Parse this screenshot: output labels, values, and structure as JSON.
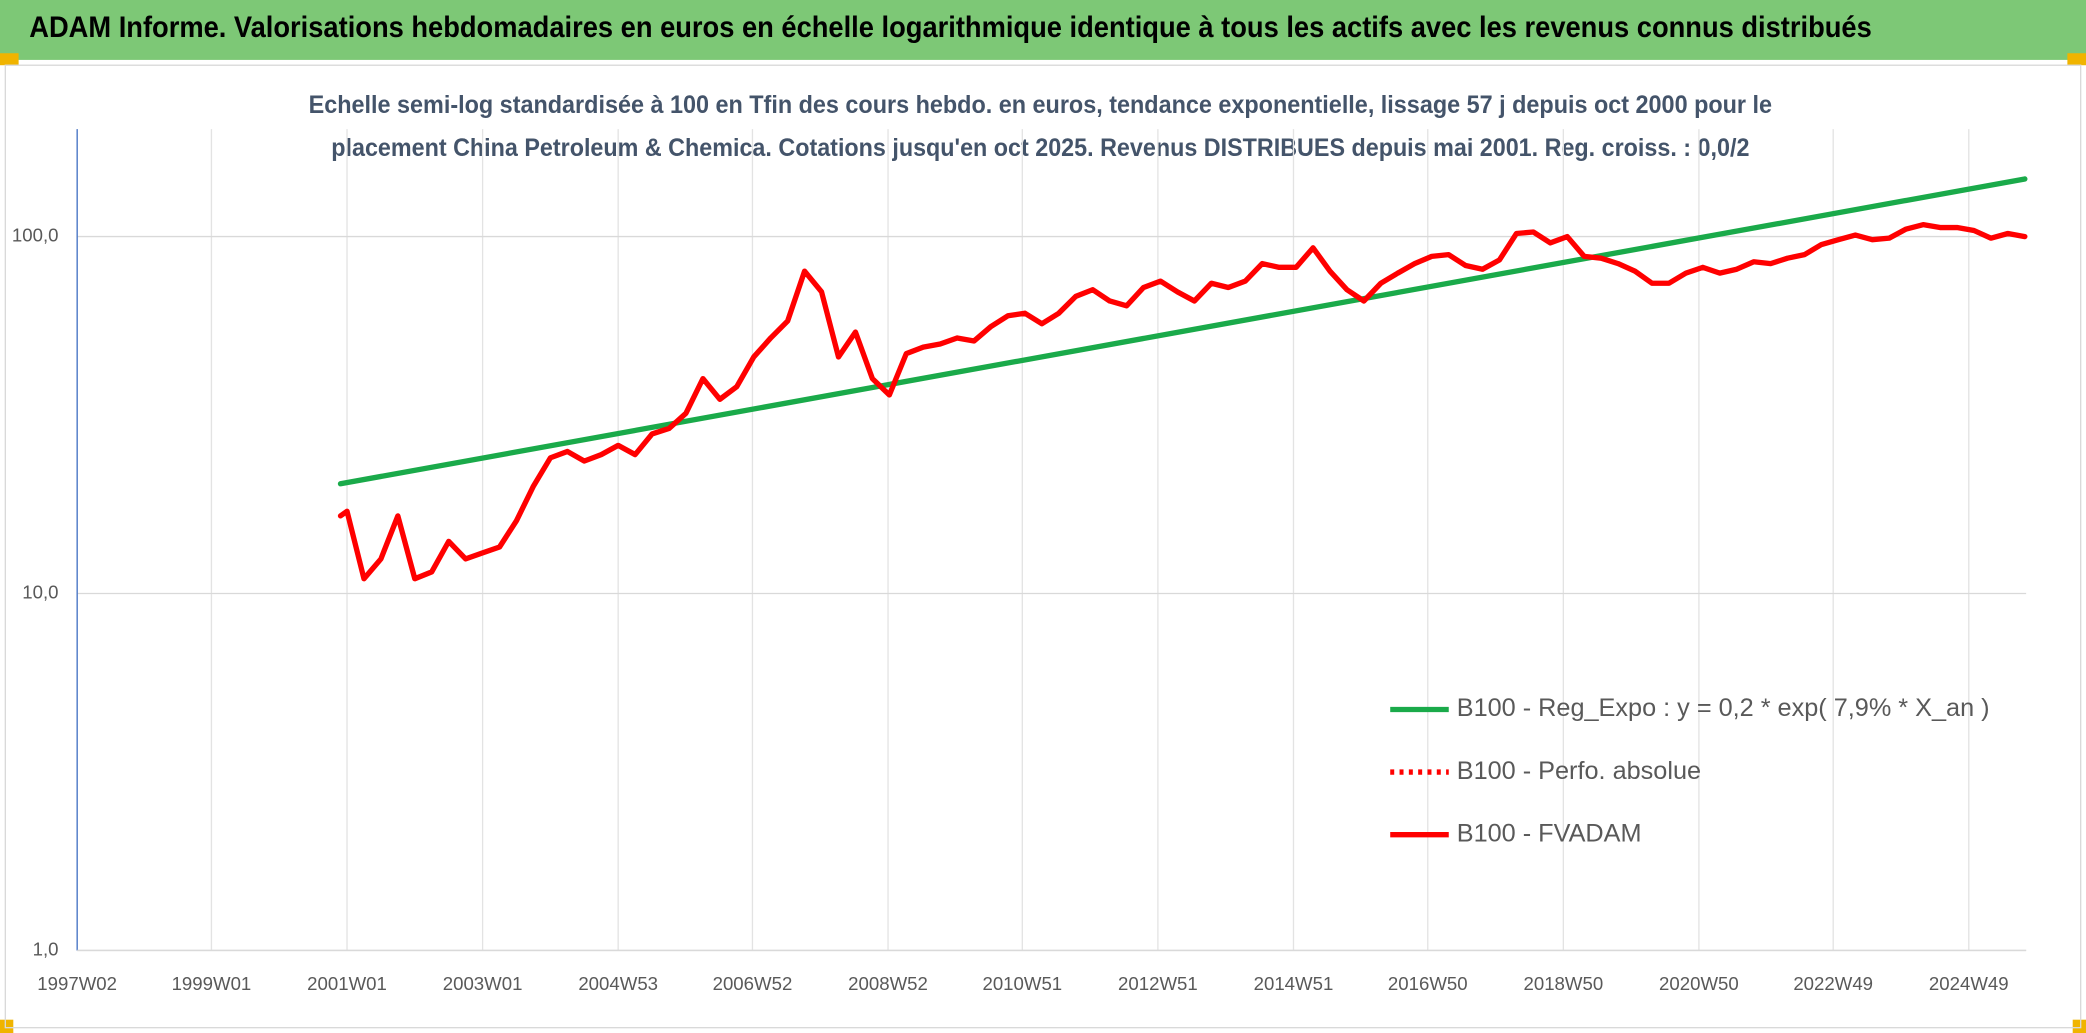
{
  "chart_data": {
    "type": "line",
    "header": "ADAM Informe. Valorisations hebdomadaires en euros en échelle logarithmique identique à tous les actifs avec les revenus connus distribués",
    "subtitle": [
      "Echelle semi-log standardisée à 100 en Tfin des cours hebdo. en euros, tendance exponentielle, lissage 57 j depuis oct 2000 pour le",
      "placement China Petroleum & Chemica. Cotations jusqu'en oct 2025. Revenus DISTRIBUES depuis mai 2001. Reg. croiss. : 0,0/2"
    ],
    "log_y": true,
    "grid": true,
    "legend": "right",
    "xlim": [
      "1997W02",
      "2025W41"
    ],
    "xticks": [
      "1997W02",
      "1999W01",
      "2001W01",
      "2003W01",
      "2004W53",
      "2006W52",
      "2008W52",
      "2010W51",
      "2012W51",
      "2014W51",
      "2016W50",
      "2018W50",
      "2020W50",
      "2022W49",
      "2024W49"
    ],
    "ylim": [
      1,
      200
    ],
    "yticks": [
      {
        "value": 1,
        "label": "1,0"
      },
      {
        "value": 10,
        "label": "10,0"
      },
      {
        "value": 100,
        "label": "100,0"
      }
    ],
    "series": [
      {
        "name": "B100 - Reg_Expo : y = 0,2 * exp( 7,9% *  X_an )",
        "color": "#1aaa4a",
        "dash": "solid",
        "x": [
          "2000W48",
          "2025W40"
        ],
        "values": [
          20.3,
          145
        ]
      },
      {
        "name": "B100 - Perfo. absolue",
        "color": "#ff0000",
        "dash": "dotted",
        "x": [
          "2000W48",
          "2001W01",
          "2001W14",
          "2001W27",
          "2001W40",
          "2002W01",
          "2002W14",
          "2002W27",
          "2002W40",
          "2003W01",
          "2003W14",
          "2003W27",
          "2003W40",
          "2004W01",
          "2004W14",
          "2004W27",
          "2004W40",
          "2005W01",
          "2005W14",
          "2005W27",
          "2005W40",
          "2006W01",
          "2006W14",
          "2006W27",
          "2006W40",
          "2007W01",
          "2007W14",
          "2007W27",
          "2007W40",
          "2008W01",
          "2008W14",
          "2008W27",
          "2008W40",
          "2009W01",
          "2009W14",
          "2009W27",
          "2009W40",
          "2010W01",
          "2010W14",
          "2010W27",
          "2010W40",
          "2011W01",
          "2011W14",
          "2011W27",
          "2011W40",
          "2012W01",
          "2012W14",
          "2012W27",
          "2012W40",
          "2013W01",
          "2013W14",
          "2013W27",
          "2013W40",
          "2014W01",
          "2014W14",
          "2014W27",
          "2014W40",
          "2015W01",
          "2015W14",
          "2015W27",
          "2015W40",
          "2016W01",
          "2016W14",
          "2016W27",
          "2016W40",
          "2017W01",
          "2017W14",
          "2017W27",
          "2017W40",
          "2018W01",
          "2018W14",
          "2018W27",
          "2018W40",
          "2019W01",
          "2019W14",
          "2019W27",
          "2019W40",
          "2020W01",
          "2020W14",
          "2020W27",
          "2020W40",
          "2021W01",
          "2021W14",
          "2021W27",
          "2021W40",
          "2022W01",
          "2022W14",
          "2022W27",
          "2022W40",
          "2023W01",
          "2023W14",
          "2023W27",
          "2023W40",
          "2024W01",
          "2024W14",
          "2024W27",
          "2024W40",
          "2025W01",
          "2025W14",
          "2025W27",
          "2025W40"
        ],
        "values": [
          16.5,
          17,
          11,
          12.5,
          16.5,
          11,
          11.5,
          14,
          12.5,
          13,
          13.5,
          16,
          20,
          24,
          25,
          23.5,
          24.5,
          26,
          24.5,
          28,
          29,
          32,
          40,
          35,
          38,
          46,
          52,
          58,
          80,
          70,
          46,
          54,
          40,
          36,
          47,
          49,
          50,
          52,
          51,
          56,
          60,
          61,
          57,
          61,
          68,
          71,
          66,
          64,
          72,
          75,
          70,
          66,
          74,
          72,
          75,
          84,
          82,
          82,
          93,
          80,
          71,
          66,
          74,
          79,
          84,
          88,
          89,
          83,
          81,
          86,
          102,
          103,
          96,
          100,
          88,
          87,
          84,
          80,
          74,
          74,
          79,
          82,
          79,
          81,
          85,
          84,
          87,
          89,
          95,
          98,
          101,
          98,
          99,
          105,
          108,
          106,
          106,
          104,
          99,
          102,
          100
        ]
      },
      {
        "name": "B100 - FVADAM",
        "color": "#ff0000",
        "dash": "solid",
        "x": [
          "2000W48",
          "2001W01",
          "2001W14",
          "2001W27",
          "2001W40",
          "2002W01",
          "2002W14",
          "2002W27",
          "2002W40",
          "2003W01",
          "2003W14",
          "2003W27",
          "2003W40",
          "2004W01",
          "2004W14",
          "2004W27",
          "2004W40",
          "2005W01",
          "2005W14",
          "2005W27",
          "2005W40",
          "2006W01",
          "2006W14",
          "2006W27",
          "2006W40",
          "2007W01",
          "2007W14",
          "2007W27",
          "2007W40",
          "2008W01",
          "2008W14",
          "2008W27",
          "2008W40",
          "2009W01",
          "2009W14",
          "2009W27",
          "2009W40",
          "2010W01",
          "2010W14",
          "2010W27",
          "2010W40",
          "2011W01",
          "2011W14",
          "2011W27",
          "2011W40",
          "2012W01",
          "2012W14",
          "2012W27",
          "2012W40",
          "2013W01",
          "2013W14",
          "2013W27",
          "2013W40",
          "2014W01",
          "2014W14",
          "2014W27",
          "2014W40",
          "2015W01",
          "2015W14",
          "2015W27",
          "2015W40",
          "2016W01",
          "2016W14",
          "2016W27",
          "2016W40",
          "2017W01",
          "2017W14",
          "2017W27",
          "2017W40",
          "2018W01",
          "2018W14",
          "2018W27",
          "2018W40",
          "2019W01",
          "2019W14",
          "2019W27",
          "2019W40",
          "2020W01",
          "2020W14",
          "2020W27",
          "2020W40",
          "2021W01",
          "2021W14",
          "2021W27",
          "2021W40",
          "2022W01",
          "2022W14",
          "2022W27",
          "2022W40",
          "2023W01",
          "2023W14",
          "2023W27",
          "2023W40",
          "2024W01",
          "2024W14",
          "2024W27",
          "2024W40",
          "2025W01",
          "2025W14",
          "2025W27",
          "2025W40"
        ],
        "values": [
          16.5,
          17,
          11,
          12.5,
          16.5,
          11,
          11.5,
          14,
          12.5,
          13,
          13.5,
          16,
          20,
          24,
          25,
          23.5,
          24.5,
          26,
          24.5,
          28,
          29,
          32,
          40,
          35,
          38,
          46,
          52,
          58,
          80,
          70,
          46,
          54,
          40,
          36,
          47,
          49,
          50,
          52,
          51,
          56,
          60,
          61,
          57,
          61,
          68,
          71,
          66,
          64,
          72,
          75,
          70,
          66,
          74,
          72,
          75,
          84,
          82,
          82,
          93,
          80,
          71,
          66,
          74,
          79,
          84,
          88,
          89,
          83,
          81,
          86,
          102,
          103,
          96,
          100,
          88,
          87,
          84,
          80,
          74,
          74,
          79,
          82,
          79,
          81,
          85,
          84,
          87,
          89,
          95,
          98,
          101,
          98,
          99,
          105,
          108,
          106,
          106,
          104,
          99,
          102,
          100
        ]
      }
    ]
  }
}
